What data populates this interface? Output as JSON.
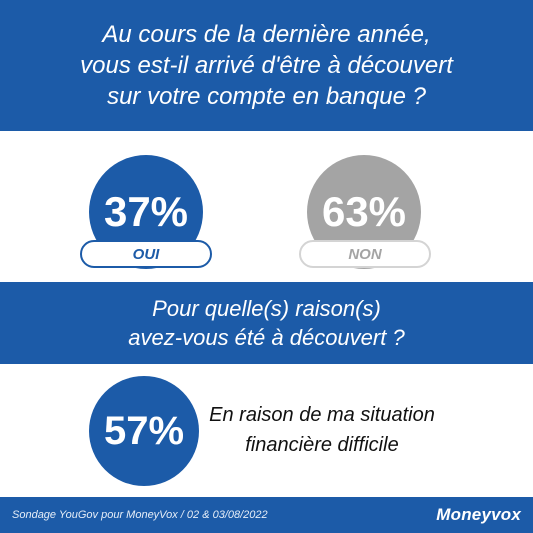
{
  "colors": {
    "primary_blue": "#1c5ba8",
    "neutral_gray": "#a4a4a4",
    "pill_gray": "#d4d4d4"
  },
  "question1": {
    "lines": [
      "Au cours de la dernière année,",
      "vous est-il arrivé d'être à découvert",
      "sur votre compte en banque ?"
    ]
  },
  "question2": {
    "lines": [
      "Pour quelle(s) raison(s)",
      "avez-vous été à découvert ?"
    ]
  },
  "reason": {
    "lines": [
      "En raison de ma situation",
      "financière difficile"
    ]
  },
  "footer": {
    "source": "Sondage YouGov pour MoneyVox / 02 & 03/08/2022",
    "brand": "Moneyvox"
  },
  "chart_data": [
    {
      "type": "pie",
      "categories": [
        "OUI",
        "NON"
      ],
      "values": [
        37,
        63
      ],
      "value_labels": [
        "37%",
        "63%"
      ]
    },
    {
      "type": "bar",
      "categories": [
        "En raison de ma situation financière difficile"
      ],
      "values": [
        57
      ],
      "value_labels": [
        "57%"
      ]
    }
  ]
}
